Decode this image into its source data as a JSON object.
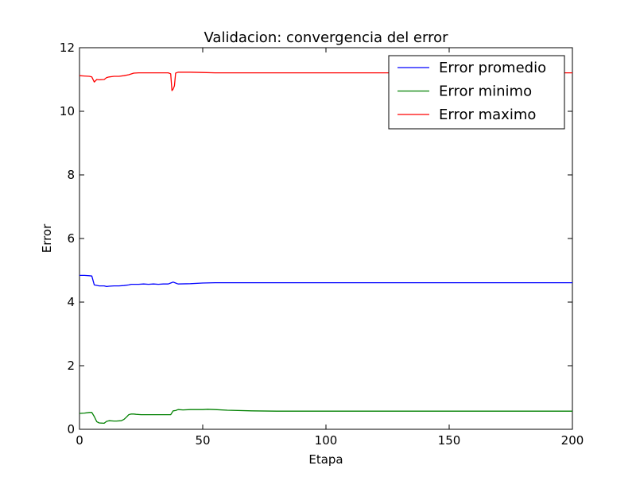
{
  "chart_data": {
    "type": "line",
    "title": "Validacion: convergencia del error",
    "xlabel": "Etapa",
    "ylabel": "Error",
    "xlim": [
      0,
      200
    ],
    "ylim": [
      0,
      12
    ],
    "xticks": [
      "0",
      "50",
      "100",
      "150",
      "200"
    ],
    "yticks": [
      "0",
      "2",
      "4",
      "6",
      "8",
      "10",
      "12"
    ],
    "legend_position": "top-right",
    "series": [
      {
        "name": "Error promedio",
        "color": "#0000ff",
        "x": [
          0,
          2,
          4,
          5,
          6,
          8,
          10,
          11,
          12,
          14,
          16,
          18,
          20,
          21,
          22,
          24,
          26,
          28,
          30,
          32,
          34,
          36,
          37,
          38,
          39,
          40,
          45,
          50,
          55,
          60,
          80,
          100,
          150,
          200
        ],
        "y": [
          4.84,
          4.84,
          4.83,
          4.82,
          4.54,
          4.51,
          4.51,
          4.49,
          4.5,
          4.51,
          4.51,
          4.52,
          4.54,
          4.56,
          4.56,
          4.56,
          4.57,
          4.56,
          4.57,
          4.56,
          4.57,
          4.57,
          4.6,
          4.63,
          4.6,
          4.57,
          4.58,
          4.6,
          4.61,
          4.61,
          4.61,
          4.61,
          4.61,
          4.61
        ]
      },
      {
        "name": "Error minimo",
        "color": "#008000",
        "x": [
          0,
          2,
          4,
          5,
          6,
          7,
          8,
          10,
          11,
          12,
          14,
          15,
          17,
          18,
          19,
          20,
          21,
          22,
          23,
          25,
          30,
          35,
          37,
          38,
          39,
          40,
          42,
          45,
          50,
          52,
          55,
          60,
          70,
          80,
          100,
          150,
          200
        ],
        "y": [
          0.5,
          0.51,
          0.53,
          0.53,
          0.4,
          0.24,
          0.2,
          0.19,
          0.25,
          0.27,
          0.26,
          0.26,
          0.27,
          0.31,
          0.38,
          0.46,
          0.48,
          0.48,
          0.47,
          0.46,
          0.46,
          0.46,
          0.46,
          0.58,
          0.59,
          0.62,
          0.61,
          0.62,
          0.62,
          0.63,
          0.62,
          0.6,
          0.58,
          0.57,
          0.57,
          0.57,
          0.57
        ]
      },
      {
        "name": "Error maximo",
        "color": "#ff0000",
        "x": [
          0,
          2,
          4,
          5,
          6,
          7,
          8,
          10,
          11,
          12,
          14,
          16,
          18,
          20,
          22,
          24,
          26,
          28,
          30,
          32,
          34,
          36,
          37,
          37.5,
          38,
          38.5,
          39,
          40,
          45,
          50,
          55,
          60,
          80,
          100,
          150,
          200
        ],
        "y": [
          11.12,
          11.11,
          11.1,
          11.08,
          10.92,
          11.0,
          10.99,
          11.0,
          11.06,
          11.08,
          11.1,
          11.1,
          11.12,
          11.15,
          11.2,
          11.21,
          11.21,
          11.21,
          11.21,
          11.21,
          11.21,
          11.21,
          11.18,
          10.65,
          10.7,
          10.8,
          11.2,
          11.23,
          11.23,
          11.22,
          11.21,
          11.21,
          11.21,
          11.21,
          11.21,
          11.21
        ]
      }
    ]
  }
}
